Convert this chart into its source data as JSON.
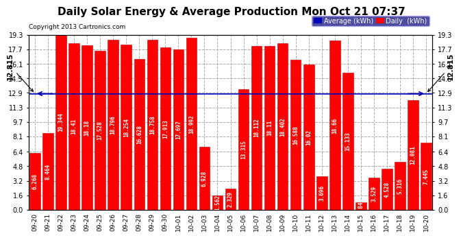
{
  "title": "Daily Solar Energy & Average Production Mon Oct 21 07:37",
  "copyright": "Copyright 2013 Cartronics.com",
  "categories": [
    "09-20",
    "09-21",
    "09-22",
    "09-23",
    "09-24",
    "09-25",
    "09-26",
    "09-27",
    "09-28",
    "09-29",
    "09-30",
    "10-01",
    "10-02",
    "10-03",
    "10-04",
    "10-05",
    "10-06",
    "10-07",
    "10-08",
    "10-09",
    "10-10",
    "10-11",
    "10-12",
    "10-13",
    "10-14",
    "10-15",
    "10-16",
    "10-17",
    "10-18",
    "10-19",
    "10-20"
  ],
  "values": [
    6.268,
    8.464,
    19.344,
    18.41,
    18.18,
    17.528,
    18.796,
    18.254,
    16.628,
    18.758,
    17.913,
    17.697,
    18.992,
    6.928,
    1.562,
    2.329,
    13.315,
    18.112,
    18.11,
    18.402,
    16.588,
    16.02,
    3.696,
    18.66,
    15.133,
    0.846,
    3.529,
    4.528,
    5.316,
    12.081,
    7.445
  ],
  "average": 12.815,
  "bar_color": "#ff0000",
  "avg_line_color": "#0000bb",
  "background_color": "#ffffff",
  "plot_bg_color": "#ffffff",
  "grid_color": "#aaaaaa",
  "ylim": [
    0.0,
    19.3
  ],
  "yticks": [
    0.0,
    1.6,
    3.2,
    4.8,
    6.4,
    8.1,
    9.7,
    11.3,
    12.9,
    14.5,
    16.1,
    17.7,
    19.3
  ],
  "title_fontsize": 11,
  "bar_label_fontsize": 5.5,
  "avg_label": "12.815",
  "legend_avg_color": "#0000bb",
  "legend_daily_color": "#ff0000",
  "legend_avg_text": "Average (kWh)",
  "legend_daily_text": "Daily  (kWh)"
}
